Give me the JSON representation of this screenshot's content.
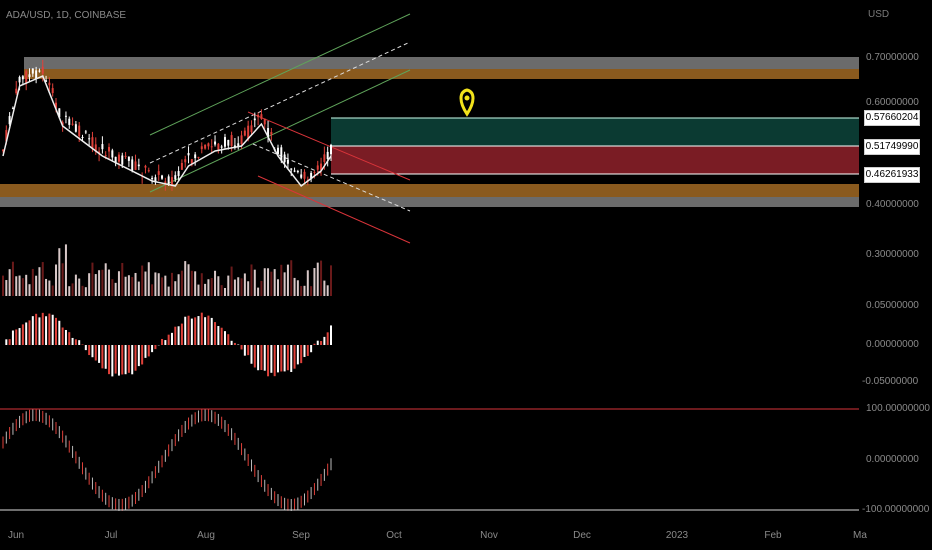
{
  "header": {
    "symbol": "ADA/USD, 1D, COINBASE",
    "currency": "USD"
  },
  "price_axis": [
    "0.70000000",
    "0.60000000",
    "0.40000000",
    "0.30000000"
  ],
  "price_boxes": [
    "0.57660204",
    "0.51749990",
    "0.46261933"
  ],
  "osc1_axis": [
    "0.05000000",
    "0.00000000",
    "-0.05000000"
  ],
  "osc2_axis": [
    "100.00000000",
    "0.00000000",
    "-100.00000000"
  ],
  "time_axis": [
    "Jun",
    "Jul",
    "Aug",
    "Sep",
    "Oct",
    "Nov",
    "Dec",
    "2023",
    "Feb",
    "Ma"
  ],
  "colors": {
    "bull": "#ffffff",
    "bear": "#e0413a",
    "zone_gray": "#6b6b6b",
    "zone_orange": "#8a5a1e",
    "profit": "#0b3a32",
    "loss": "#7a1c24",
    "channel_green": "#5fa35a",
    "channel_red": "#d9343a",
    "marker": "#f2e21b"
  },
  "marker_icon": "location-pin-icon"
}
